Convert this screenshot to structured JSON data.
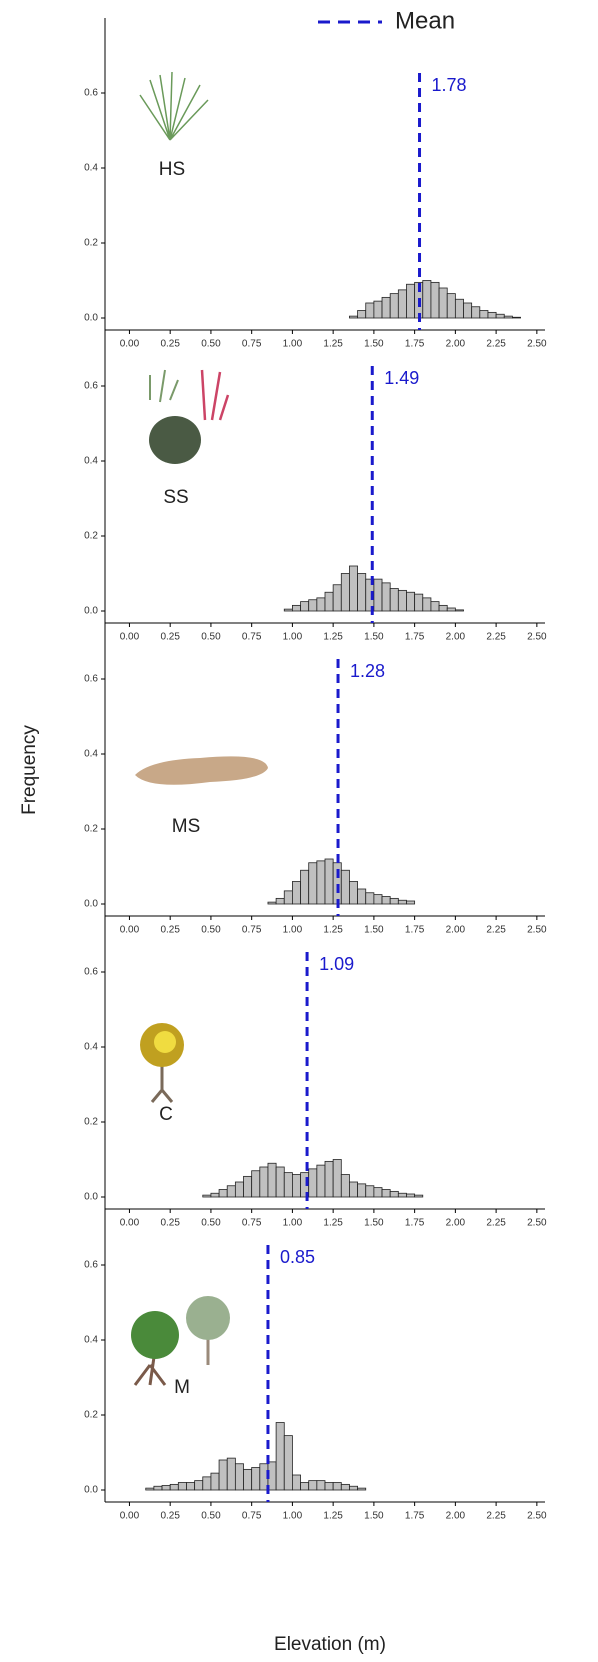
{
  "legend_label": "Mean",
  "ylabel": "Frequency",
  "xlabel": "Elevation (m)",
  "chart_data": [
    {
      "type": "histogram",
      "label": "HS",
      "mean": 1.78,
      "mean_color": "#1a1acc",
      "color": "#c0c0c0",
      "bins": [
        0,
        0.05,
        0.1,
        0.15,
        0.2,
        0.25,
        0.3,
        0.35,
        0.4,
        0.45,
        0.5,
        0.55,
        0.6,
        0.65,
        0.7,
        0.75,
        0.8,
        0.85,
        0.9,
        0.95,
        1,
        1.05,
        1.1,
        1.15,
        1.2,
        1.25,
        1.3,
        1.35,
        1.4,
        1.45,
        1.5,
        1.55,
        1.6,
        1.65,
        1.7,
        1.75,
        1.8,
        1.85,
        1.9,
        1.95,
        2,
        2.05,
        2.1,
        2.15,
        2.2,
        2.25,
        2.3,
        2.35,
        2.4,
        2.45,
        2.5
      ],
      "values": [
        0,
        0,
        0,
        0,
        0,
        0,
        0,
        0,
        0,
        0,
        0,
        0,
        0,
        0,
        0,
        0,
        0,
        0,
        0,
        0,
        0,
        0,
        0,
        0,
        0,
        0,
        0,
        0.005,
        0.02,
        0.04,
        0.045,
        0.055,
        0.065,
        0.075,
        0.09,
        0.095,
        0.1,
        0.095,
        0.08,
        0.065,
        0.05,
        0.04,
        0.03,
        0.02,
        0.015,
        0.01,
        0.005,
        0.002,
        0,
        0
      ],
      "xlim": [
        -0.15,
        2.55
      ],
      "ylim": [
        0,
        0.8
      ],
      "xticks": [
        {
          "value": 0,
          "label": "0.00"
        },
        {
          "value": 0.25,
          "label": "0.25"
        },
        {
          "value": 0.5,
          "label": "0.50"
        },
        {
          "value": 0.75,
          "label": "0.75"
        },
        {
          "value": 1,
          "label": "1.00"
        },
        {
          "value": 1.25,
          "label": "1.25"
        },
        {
          "value": 1.5,
          "label": "1.50"
        },
        {
          "value": 1.75,
          "label": "1.75"
        },
        {
          "value": 2,
          "label": "2.00"
        },
        {
          "value": 2.25,
          "label": "2.25"
        },
        {
          "value": 2.5,
          "label": "2.50"
        }
      ],
      "yticks": [
        {
          "value": 0,
          "label": "0.0"
        },
        0.2,
        0.4,
        0.6
      ]
    },
    {
      "type": "histogram",
      "label": "SS",
      "mean": 1.49,
      "mean_color": "#1a1acc",
      "color": "#c0c0c0",
      "bins": [
        0,
        0.05,
        0.1,
        0.15,
        0.2,
        0.25,
        0.3,
        0.35,
        0.4,
        0.45,
        0.5,
        0.55,
        0.6,
        0.65,
        0.7,
        0.75,
        0.8,
        0.85,
        0.9,
        0.95,
        1,
        1.05,
        1.1,
        1.15,
        1.2,
        1.25,
        1.3,
        1.35,
        1.4,
        1.45,
        1.5,
        1.55,
        1.6,
        1.65,
        1.7,
        1.75,
        1.8,
        1.85,
        1.9,
        1.95,
        2,
        2.05,
        2.1,
        2.15,
        2.2,
        2.25,
        2.3,
        2.35,
        2.4,
        2.45,
        2.5
      ],
      "values": [
        0,
        0,
        0,
        0,
        0,
        0,
        0,
        0,
        0,
        0,
        0,
        0,
        0,
        0,
        0,
        0,
        0,
        0,
        0,
        0.005,
        0.015,
        0.025,
        0.03,
        0.035,
        0.05,
        0.07,
        0.1,
        0.12,
        0.1,
        0.085,
        0.085,
        0.075,
        0.06,
        0.055,
        0.05,
        0.045,
        0.035,
        0.025,
        0.015,
        0.008,
        0.003,
        0,
        0,
        0,
        0,
        0,
        0,
        0,
        0,
        0
      ],
      "xlim": [
        -0.15,
        2.55
      ],
      "ylim": [
        0,
        0.8
      ],
      "xticks": [
        {
          "value": 0,
          "label": "0.00"
        },
        {
          "value": 0.25,
          "label": "0.25"
        },
        {
          "value": 0.5,
          "label": "0.50"
        },
        {
          "value": 0.75,
          "label": "0.75"
        },
        {
          "value": 1,
          "label": "1.00"
        },
        {
          "value": 1.25,
          "label": "1.25"
        },
        {
          "value": 1.5,
          "label": "1.50"
        },
        {
          "value": 1.75,
          "label": "1.75"
        },
        {
          "value": 2,
          "label": "2.00"
        },
        {
          "value": 2.25,
          "label": "2.25"
        },
        {
          "value": 2.5,
          "label": "2.50"
        }
      ],
      "yticks": [
        {
          "value": 0,
          "label": "0.0"
        },
        0.2,
        0.4,
        0.6
      ]
    },
    {
      "type": "histogram",
      "label": "MS",
      "mean": 1.28,
      "mean_color": "#1a1acc",
      "color": "#c0c0c0",
      "bins": [
        0,
        0.05,
        0.1,
        0.15,
        0.2,
        0.25,
        0.3,
        0.35,
        0.4,
        0.45,
        0.5,
        0.55,
        0.6,
        0.65,
        0.7,
        0.75,
        0.8,
        0.85,
        0.9,
        0.95,
        1,
        1.05,
        1.1,
        1.15,
        1.2,
        1.25,
        1.3,
        1.35,
        1.4,
        1.45,
        1.5,
        1.55,
        1.6,
        1.65,
        1.7,
        1.75,
        1.8,
        1.85,
        1.9,
        1.95,
        2,
        2.05,
        2.1,
        2.15,
        2.2,
        2.25,
        2.3,
        2.35,
        2.4,
        2.45,
        2.5
      ],
      "values": [
        0,
        0,
        0,
        0,
        0,
        0,
        0,
        0,
        0,
        0,
        0,
        0,
        0,
        0,
        0,
        0,
        0,
        0.005,
        0.015,
        0.035,
        0.06,
        0.09,
        0.11,
        0.115,
        0.12,
        0.11,
        0.09,
        0.06,
        0.04,
        0.03,
        0.025,
        0.02,
        0.015,
        0.01,
        0.008,
        0,
        0,
        0,
        0,
        0,
        0,
        0,
        0,
        0,
        0,
        0,
        0,
        0,
        0,
        0
      ],
      "xlim": [
        -0.15,
        2.55
      ],
      "ylim": [
        0,
        0.8
      ],
      "xticks": [
        {
          "value": 0,
          "label": "0.00"
        },
        {
          "value": 0.25,
          "label": "0.25"
        },
        {
          "value": 0.5,
          "label": "0.50"
        },
        {
          "value": 0.75,
          "label": "0.75"
        },
        {
          "value": 1,
          "label": "1.00"
        },
        {
          "value": 1.25,
          "label": "1.25"
        },
        {
          "value": 1.5,
          "label": "1.50"
        },
        {
          "value": 1.75,
          "label": "1.75"
        },
        {
          "value": 2,
          "label": "2.00"
        },
        {
          "value": 2.25,
          "label": "2.25"
        },
        {
          "value": 2.5,
          "label": "2.50"
        }
      ],
      "yticks": [
        {
          "value": 0,
          "label": "0.0"
        },
        0.2,
        0.4,
        0.6
      ]
    },
    {
      "type": "histogram",
      "label": "C",
      "mean": 1.09,
      "mean_color": "#1a1acc",
      "color": "#c0c0c0",
      "bins": [
        0,
        0.05,
        0.1,
        0.15,
        0.2,
        0.25,
        0.3,
        0.35,
        0.4,
        0.45,
        0.5,
        0.55,
        0.6,
        0.65,
        0.7,
        0.75,
        0.8,
        0.85,
        0.9,
        0.95,
        1,
        1.05,
        1.1,
        1.15,
        1.2,
        1.25,
        1.3,
        1.35,
        1.4,
        1.45,
        1.5,
        1.55,
        1.6,
        1.65,
        1.7,
        1.75,
        1.8,
        1.85,
        1.9,
        1.95,
        2,
        2.05,
        2.1,
        2.15,
        2.2,
        2.25,
        2.3,
        2.35,
        2.4,
        2.45,
        2.5
      ],
      "values": [
        0,
        0,
        0,
        0,
        0,
        0,
        0,
        0,
        0,
        0.005,
        0.01,
        0.02,
        0.03,
        0.04,
        0.055,
        0.07,
        0.08,
        0.09,
        0.08,
        0.065,
        0.06,
        0.065,
        0.075,
        0.085,
        0.095,
        0.1,
        0.06,
        0.04,
        0.035,
        0.03,
        0.025,
        0.02,
        0.015,
        0.01,
        0.008,
        0.005,
        0,
        0,
        0,
        0,
        0,
        0,
        0,
        0,
        0,
        0,
        0,
        0,
        0,
        0
      ],
      "xlim": [
        -0.15,
        2.55
      ],
      "ylim": [
        0,
        0.8
      ],
      "xticks": [
        {
          "value": 0,
          "label": "0.00"
        },
        {
          "value": 0.25,
          "label": "0.25"
        },
        {
          "value": 0.5,
          "label": "0.50"
        },
        {
          "value": 0.75,
          "label": "0.75"
        },
        {
          "value": 1,
          "label": "1.00"
        },
        {
          "value": 1.25,
          "label": "1.25"
        },
        {
          "value": 1.5,
          "label": "1.50"
        },
        {
          "value": 1.75,
          "label": "1.75"
        },
        {
          "value": 2,
          "label": "2.00"
        },
        {
          "value": 2.25,
          "label": "2.25"
        },
        {
          "value": 2.5,
          "label": "2.50"
        }
      ],
      "yticks": [
        {
          "value": 0,
          "label": "0.0"
        },
        0.2,
        0.4,
        0.6
      ]
    },
    {
      "type": "histogram",
      "label": "M",
      "mean": 0.85,
      "mean_color": "#1a1acc",
      "color": "#c0c0c0",
      "bins": [
        0,
        0.05,
        0.1,
        0.15,
        0.2,
        0.25,
        0.3,
        0.35,
        0.4,
        0.45,
        0.5,
        0.55,
        0.6,
        0.65,
        0.7,
        0.75,
        0.8,
        0.85,
        0.9,
        0.95,
        1,
        1.05,
        1.1,
        1.15,
        1.2,
        1.25,
        1.3,
        1.35,
        1.4,
        1.45,
        1.5,
        1.55,
        1.6,
        1.65,
        1.7,
        1.75,
        1.8,
        1.85,
        1.9,
        1.95,
        2,
        2.05,
        2.1,
        2.15,
        2.2,
        2.25,
        2.3,
        2.35,
        2.4,
        2.45,
        2.5
      ],
      "values": [
        0,
        0,
        0.005,
        0.01,
        0.012,
        0.015,
        0.02,
        0.02,
        0.025,
        0.035,
        0.045,
        0.08,
        0.085,
        0.07,
        0.055,
        0.06,
        0.07,
        0.075,
        0.18,
        0.145,
        0.04,
        0.02,
        0.025,
        0.025,
        0.02,
        0.02,
        0.015,
        0.01,
        0.005,
        0,
        0,
        0,
        0,
        0,
        0,
        0,
        0,
        0,
        0,
        0,
        0,
        0,
        0,
        0,
        0,
        0,
        0,
        0,
        0,
        0
      ],
      "xlim": [
        -0.15,
        2.55
      ],
      "ylim": [
        0,
        0.8
      ],
      "xticks": [
        {
          "value": 0,
          "label": "0.00"
        },
        {
          "value": 0.25,
          "label": "0.25"
        },
        {
          "value": 0.5,
          "label": "0.50"
        },
        {
          "value": 0.75,
          "label": "0.75"
        },
        {
          "value": 1,
          "label": "1.00"
        },
        {
          "value": 1.25,
          "label": "1.25"
        },
        {
          "value": 1.5,
          "label": "1.50"
        },
        {
          "value": 1.75,
          "label": "1.75"
        },
        {
          "value": 2,
          "label": "2.00"
        },
        {
          "value": 2.25,
          "label": "2.25"
        },
        {
          "value": 2.5,
          "label": "2.50"
        }
      ],
      "yticks": [
        {
          "value": 0,
          "label": "0.0"
        },
        0.2,
        0.4,
        0.6
      ]
    }
  ]
}
